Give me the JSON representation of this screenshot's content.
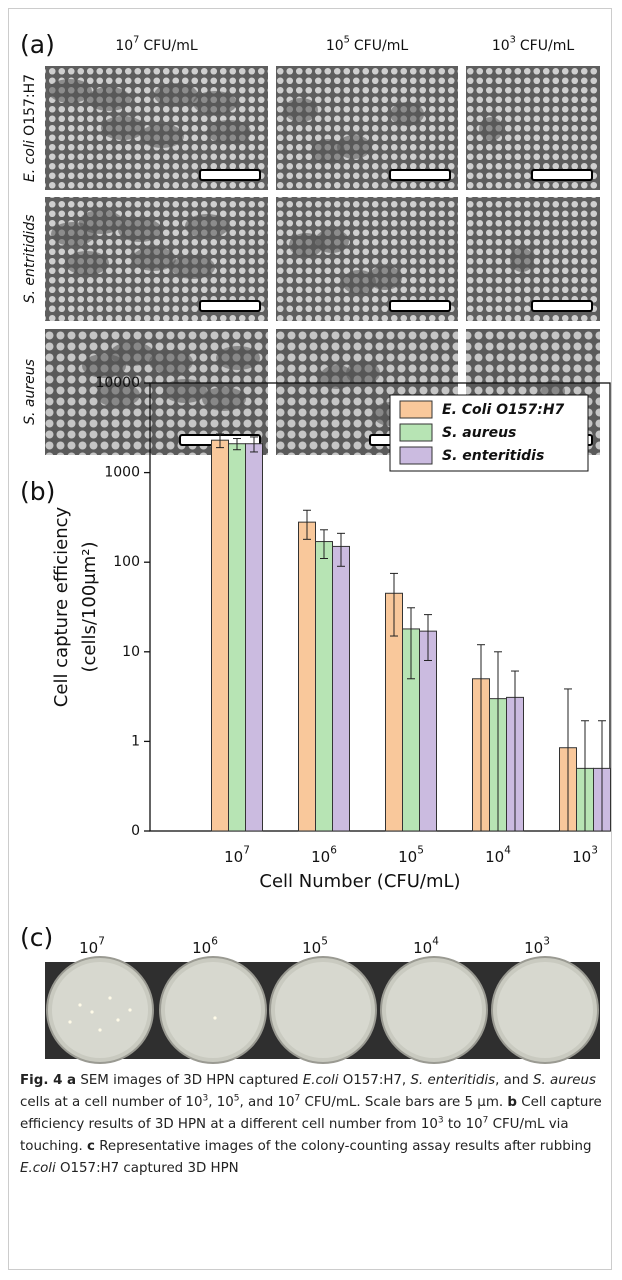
{
  "panel_a": {
    "label": "(a)",
    "columns": [
      {
        "base": "10",
        "exponent": "7",
        "unit": "CFU/mL"
      },
      {
        "base": "10",
        "exponent": "5",
        "unit": "CFU/mL"
      },
      {
        "base": "10",
        "exponent": "3",
        "unit": "CFU/mL"
      }
    ],
    "rows": [
      [
        {
          "text": "E. coli",
          "style": "italic"
        },
        {
          "text": " O157:H7"
        }
      ],
      [
        {
          "text": "S. entritidids",
          "style": "italic"
        }
      ],
      [
        {
          "text": "S. aureus",
          "style": "italic"
        }
      ]
    ]
  },
  "panel_b": {
    "label": "(b)"
  },
  "chart_data": {
    "type": "bar",
    "xlabel": "Cell Number (CFU/mL)",
    "ylabel": [
      "Cell capture efficiency",
      "(cells/100μm²)"
    ],
    "categories": [
      {
        "base": "10",
        "exponent": "7"
      },
      {
        "base": "10",
        "exponent": "6"
      },
      {
        "base": "10",
        "exponent": "5"
      },
      {
        "base": "10",
        "exponent": "4"
      },
      {
        "base": "10",
        "exponent": "3"
      }
    ],
    "series": [
      {
        "name": "E. Coli O157:H7",
        "color": "#f9c89b",
        "values": [
          2300,
          280,
          45,
          5,
          0.85
        ],
        "errors": [
          400,
          100,
          30,
          7,
          3
        ]
      },
      {
        "name": "S. aureus",
        "color": "#b7e4b4",
        "values": [
          2100,
          170,
          18,
          3,
          0.5
        ],
        "errors": [
          300,
          60,
          13,
          7,
          1.2
        ]
      },
      {
        "name": "S. enteritidis",
        "color": "#cbbbe0",
        "values": [
          2100,
          150,
          17,
          3.1,
          0.5
        ],
        "errors": [
          400,
          60,
          9,
          3,
          1.2
        ]
      }
    ],
    "yscale": "log",
    "ylim": [
      0.1,
      10000
    ],
    "yticks": [
      {
        "value": 0.1,
        "label": "0"
      },
      1,
      10,
      100,
      1000,
      10000
    ],
    "legend": "upper right"
  },
  "panel_c": {
    "label": "(c)",
    "columns": [
      {
        "base": "10",
        "exponent": "7"
      },
      {
        "base": "10",
        "exponent": "6"
      },
      {
        "base": "10",
        "exponent": "5"
      },
      {
        "base": "10",
        "exponent": "4"
      },
      {
        "base": "10",
        "exponent": "3"
      }
    ]
  },
  "caption": [
    {
      "text": "Fig. 4 a",
      "style": "bold"
    },
    {
      "text": " SEM images of 3D HPN captured "
    },
    {
      "text": "E.coli",
      "style": "italic"
    },
    {
      "text": " O157:H7, "
    },
    {
      "text": "S. enteritidis",
      "style": "italic"
    },
    {
      "text": ", and "
    },
    {
      "text": "S. aureus",
      "style": "italic"
    },
    {
      "text": " cells at a cell number of 10"
    },
    {
      "text": "3",
      "style": "sup"
    },
    {
      "text": ", 10"
    },
    {
      "text": "5",
      "style": "sup"
    },
    {
      "text": ", and 10"
    },
    {
      "text": "7",
      "style": "sup"
    },
    {
      "text": " CFU/mL. Scale bars are 5 μm. "
    },
    {
      "text": "b",
      "style": "bold"
    },
    {
      "text": " Cell capture efficiency results of 3D HPN at a different cell number from 10"
    },
    {
      "text": "3",
      "style": "sup"
    },
    {
      "text": " to 10"
    },
    {
      "text": "7",
      "style": "sup"
    },
    {
      "text": " CFU/mL via touching. "
    },
    {
      "text": "c",
      "style": "bold"
    },
    {
      "text": " Representative images of the colony-counting assay results after rubbing "
    },
    {
      "text": "E.coli",
      "style": "italic"
    },
    {
      "text": " O157:H7 captured 3D HPN"
    }
  ]
}
